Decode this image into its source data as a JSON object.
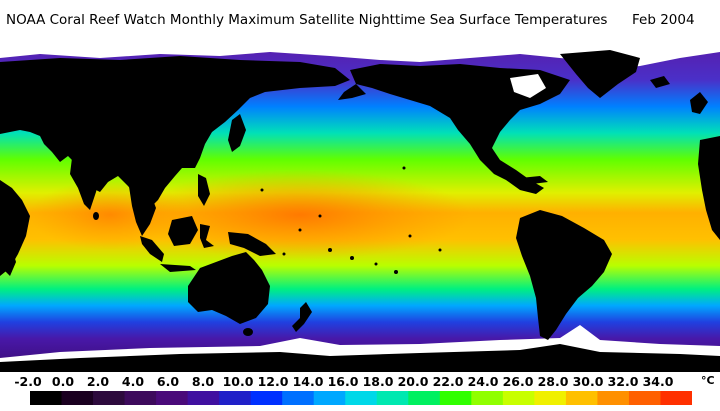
{
  "header": {
    "title": "NOAA Coral Reef Watch Monthly Maximum Satellite Nighttime Sea Surface Temperatures",
    "date": "Feb 2004"
  },
  "colorbar": {
    "ticks": [
      "-2.0",
      "0.0",
      "2.0",
      "4.0",
      "6.0",
      "8.0",
      "10.0",
      "12.0",
      "14.0",
      "16.0",
      "18.0",
      "20.0",
      "22.0",
      "24.0",
      "26.0",
      "28.0",
      "30.0",
      "32.0",
      "34.0"
    ],
    "unit": "°C",
    "min": -2,
    "max": 35,
    "colors": [
      "#000000",
      "#1a0020",
      "#2d0a3d",
      "#3d0a5c",
      "#4a0a7a",
      "#4010a0",
      "#2020c8",
      "#0030ff",
      "#0070ff",
      "#00a8ff",
      "#00d8e8",
      "#00e8b0",
      "#00f060",
      "#30ff00",
      "#90ff00",
      "#c8ff00",
      "#f0f000",
      "#ffc000",
      "#ff9000",
      "#ff6000",
      "#ff3000"
    ]
  },
  "map": {
    "palette": {
      "land": "#000000",
      "ice": "#ffffff"
    }
  }
}
